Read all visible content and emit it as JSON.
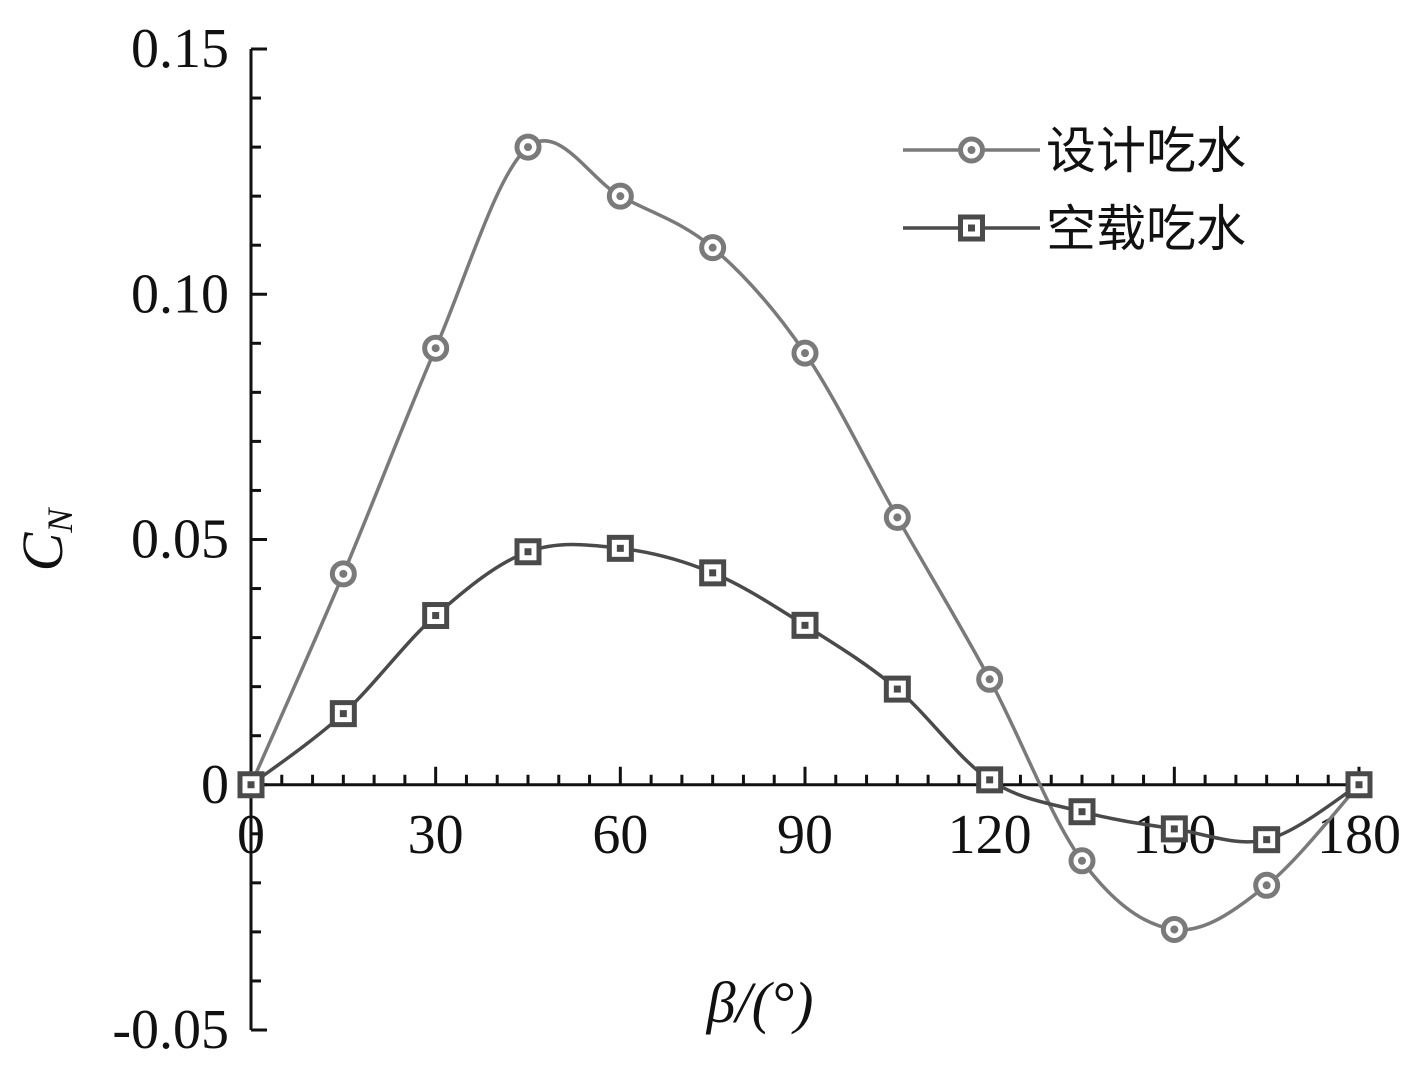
{
  "chart_data": {
    "type": "line",
    "xlabel": "β/(°)",
    "ylabel": "C_N",
    "xlim": [
      0,
      180
    ],
    "ylim": [
      -0.05,
      0.15
    ],
    "x_ticks": [
      0,
      30,
      60,
      90,
      120,
      150,
      180
    ],
    "x_tick_labels": [
      "0",
      "30",
      "60",
      "90",
      "120",
      "150",
      "180"
    ],
    "y_ticks": [
      -0.05,
      0,
      0.05,
      0.1,
      0.15
    ],
    "y_tick_labels": [
      "-0.05",
      "0",
      "0.05",
      "0.10",
      "0.15"
    ],
    "grid": false,
    "legend_position": "top-right",
    "series": [
      {
        "name": "设计吃水",
        "marker": "circle",
        "color": "#7a7a7a",
        "x": [
          0,
          15,
          30,
          45,
          60,
          75,
          90,
          105,
          120,
          135,
          150,
          165,
          180
        ],
        "y": [
          0,
          0.043,
          0.089,
          0.13,
          0.12,
          0.1095,
          0.088,
          0.0545,
          0.0215,
          -0.0155,
          -0.0295,
          -0.0205,
          0
        ]
      },
      {
        "name": "空载吃水",
        "marker": "square",
        "color": "#4a4a4a",
        "x": [
          0,
          15,
          30,
          45,
          60,
          75,
          90,
          105,
          120,
          135,
          150,
          165,
          180
        ],
        "y": [
          0,
          0.0145,
          0.0345,
          0.0475,
          0.0482,
          0.0432,
          0.0325,
          0.0195,
          0.001,
          -0.0055,
          -0.009,
          -0.0112,
          0
        ]
      }
    ]
  }
}
